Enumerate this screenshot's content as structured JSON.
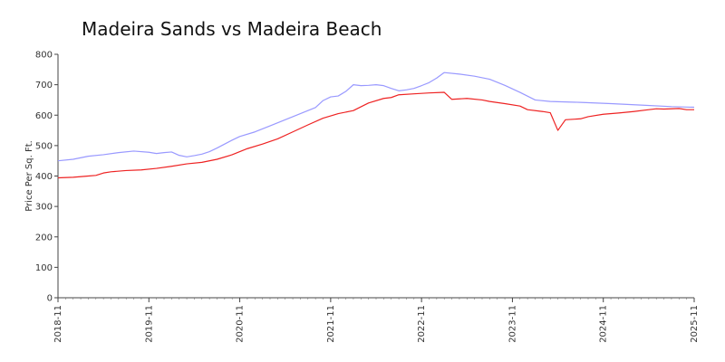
{
  "chart_data": {
    "type": "line",
    "title": "Madeira Sands vs Madeira Beach",
    "xlabel": "",
    "ylabel": "Price Per Sq. Ft.",
    "ylim": [
      0,
      800
    ],
    "y_ticks": [
      0,
      100,
      200,
      300,
      400,
      500,
      600,
      700,
      800
    ],
    "x_ticks": [
      "2018-11",
      "2019-11",
      "2020-11",
      "2021-11",
      "2022-11",
      "2023-11",
      "2024-11",
      "2025-11"
    ],
    "x_range": [
      "2018-11",
      "2025-11"
    ],
    "grid": false,
    "series": [
      {
        "color": "#9999ff",
        "points": [
          [
            "2018-11",
            450
          ],
          [
            "2019-01",
            455
          ],
          [
            "2019-03",
            465
          ],
          [
            "2019-05",
            470
          ],
          [
            "2019-07",
            477
          ],
          [
            "2019-09",
            482
          ],
          [
            "2019-11",
            478
          ],
          [
            "2019-12",
            474
          ],
          [
            "2020-01",
            477
          ],
          [
            "2020-02",
            479
          ],
          [
            "2020-03",
            468
          ],
          [
            "2020-04",
            463
          ],
          [
            "2020-05",
            467
          ],
          [
            "2020-06",
            472
          ],
          [
            "2020-07",
            480
          ],
          [
            "2020-08",
            492
          ],
          [
            "2020-09",
            505
          ],
          [
            "2020-10",
            518
          ],
          [
            "2020-11",
            530
          ],
          [
            "2021-01",
            545
          ],
          [
            "2021-03",
            565
          ],
          [
            "2021-05",
            585
          ],
          [
            "2021-07",
            605
          ],
          [
            "2021-09",
            625
          ],
          [
            "2021-10",
            648
          ],
          [
            "2021-11",
            660
          ],
          [
            "2021-12",
            663
          ],
          [
            "2022-01",
            678
          ],
          [
            "2022-02",
            700
          ],
          [
            "2022-03",
            697
          ],
          [
            "2022-04",
            698
          ],
          [
            "2022-05",
            700
          ],
          [
            "2022-06",
            697
          ],
          [
            "2022-07",
            688
          ],
          [
            "2022-08",
            680
          ],
          [
            "2022-09",
            683
          ],
          [
            "2022-10",
            688
          ],
          [
            "2022-11",
            697
          ],
          [
            "2022-12",
            707
          ],
          [
            "2023-01",
            722
          ],
          [
            "2023-02",
            740
          ],
          [
            "2023-04",
            735
          ],
          [
            "2023-06",
            728
          ],
          [
            "2023-08",
            718
          ],
          [
            "2023-10",
            698
          ],
          [
            "2023-12",
            675
          ],
          [
            "2024-02",
            650
          ],
          [
            "2024-04",
            645
          ],
          [
            "2024-08",
            642
          ],
          [
            "2024-12",
            638
          ],
          [
            "2025-04",
            633
          ],
          [
            "2025-08",
            628
          ],
          [
            "2025-11",
            626
          ]
        ]
      },
      {
        "color": "#ee2222",
        "points": [
          [
            "2018-11",
            394
          ],
          [
            "2019-01",
            396
          ],
          [
            "2019-03",
            400
          ],
          [
            "2019-04",
            402
          ],
          [
            "2019-05",
            410
          ],
          [
            "2019-06",
            414
          ],
          [
            "2019-08",
            418
          ],
          [
            "2019-10",
            420
          ],
          [
            "2019-12",
            425
          ],
          [
            "2020-02",
            432
          ],
          [
            "2020-04",
            440
          ],
          [
            "2020-06",
            445
          ],
          [
            "2020-08",
            455
          ],
          [
            "2020-10",
            470
          ],
          [
            "2020-12",
            490
          ],
          [
            "2021-02",
            505
          ],
          [
            "2021-04",
            522
          ],
          [
            "2021-06",
            545
          ],
          [
            "2021-08",
            568
          ],
          [
            "2021-10",
            590
          ],
          [
            "2021-12",
            605
          ],
          [
            "2022-02",
            615
          ],
          [
            "2022-04",
            640
          ],
          [
            "2022-06",
            655
          ],
          [
            "2022-07",
            658
          ],
          [
            "2022-08",
            667
          ],
          [
            "2022-10",
            670
          ],
          [
            "2022-12",
            673
          ],
          [
            "2023-02",
            675
          ],
          [
            "2023-03",
            652
          ],
          [
            "2023-05",
            655
          ],
          [
            "2023-07",
            650
          ],
          [
            "2023-08",
            645
          ],
          [
            "2023-10",
            638
          ],
          [
            "2023-12",
            630
          ],
          [
            "2024-01",
            618
          ],
          [
            "2024-03",
            612
          ],
          [
            "2024-04",
            608
          ],
          [
            "2024-05",
            550
          ],
          [
            "2024-06",
            585
          ],
          [
            "2024-08",
            588
          ],
          [
            "2024-09",
            595
          ],
          [
            "2024-11",
            603
          ],
          [
            "2025-01",
            607
          ],
          [
            "2025-03",
            612
          ],
          [
            "2025-05",
            618
          ],
          [
            "2025-06",
            621
          ],
          [
            "2025-07",
            620
          ],
          [
            "2025-09",
            622
          ],
          [
            "2025-10",
            618
          ],
          [
            "2025-11",
            618
          ]
        ]
      }
    ]
  }
}
